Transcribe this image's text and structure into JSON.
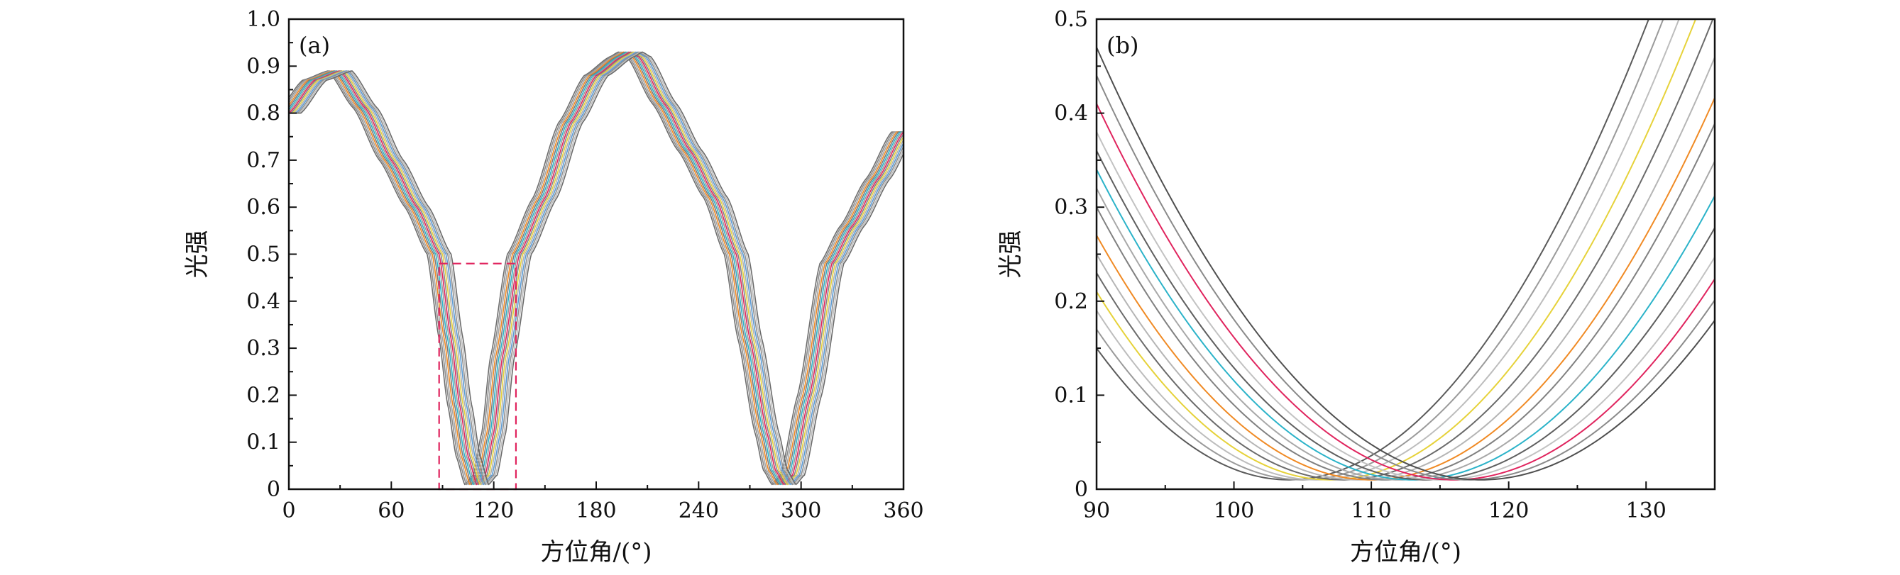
{
  "chart_data": [
    {
      "type": "line",
      "panel_label": "(a)",
      "xlabel": "方位角/(°)",
      "ylabel": "光强",
      "xlim": [
        0,
        360
      ],
      "ylim": [
        0,
        1.0
      ],
      "xticks": [
        "0",
        "60",
        "120",
        "180",
        "240",
        "300",
        "360"
      ],
      "yticks": [
        "0",
        "0.1",
        "0.2",
        "0.3",
        "0.4",
        "0.5",
        "0.6",
        "0.7",
        "0.8",
        "0.9",
        "1.0"
      ],
      "grid": false,
      "series_count": 15,
      "series_offset_step_deg": 1.0,
      "series_colors": [
        "#6e6e6e",
        "#8c8c8c",
        "#a5a5a5",
        "#f08a24",
        "#7a7a7a",
        "#2bb3c9",
        "#9a9a9a",
        "#e0245e",
        "#858585",
        "#e6d23a",
        "#b0b0b0",
        "#5b9bd5",
        "#909090",
        "#bdbdbd",
        "#6a6a6a"
      ],
      "keypoints": {
        "x": [
          0,
          15,
          30,
          45,
          60,
          75,
          88,
          95,
          100,
          105,
          110,
          115,
          120,
          125,
          135,
          150,
          165,
          180,
          195,
          200,
          205,
          220,
          235,
          250,
          262,
          270,
          280,
          285,
          290,
          295,
          305,
          318,
          330,
          345,
          360
        ],
        "y": [
          0.8,
          0.87,
          0.89,
          0.81,
          0.7,
          0.6,
          0.5,
          0.32,
          0.18,
          0.07,
          0.01,
          0.03,
          0.12,
          0.28,
          0.5,
          0.62,
          0.78,
          0.88,
          0.92,
          0.93,
          0.92,
          0.82,
          0.72,
          0.62,
          0.5,
          0.32,
          0.12,
          0.04,
          0.01,
          0.03,
          0.2,
          0.48,
          0.56,
          0.66,
          0.76
        ]
      },
      "zoom_box": {
        "x": [
          88,
          133
        ],
        "y": [
          0,
          0.48
        ]
      }
    },
    {
      "type": "line",
      "panel_label": "(b)",
      "xlabel": "方位角/(°)",
      "ylabel": "光强",
      "xlim": [
        90,
        135
      ],
      "ylim": [
        0,
        0.5
      ],
      "xticks": [
        "90",
        "100",
        "110",
        "120",
        "130"
      ],
      "yticks": [
        "0",
        "0.1",
        "0.2",
        "0.3",
        "0.4",
        "0.5"
      ],
      "grid": false,
      "series": [
        {
          "min_x": 104,
          "values_at_90": 0.15,
          "color": "#5a5a5a"
        },
        {
          "min_x": 105,
          "values_at_90": 0.17,
          "color": "#9a9a9a"
        },
        {
          "min_x": 106,
          "values_at_90": 0.19,
          "color": "#bdbdbd"
        },
        {
          "min_x": 107,
          "values_at_90": 0.21,
          "color": "#e6d23a"
        },
        {
          "min_x": 108,
          "values_at_90": 0.23,
          "color": "#6a6a6a"
        },
        {
          "min_x": 109,
          "values_at_90": 0.25,
          "color": "#b5b5b5"
        },
        {
          "min_x": 110,
          "values_at_90": 0.27,
          "color": "#f08a24"
        },
        {
          "min_x": 111,
          "values_at_90": 0.3,
          "color": "#808080"
        },
        {
          "min_x": 112,
          "values_at_90": 0.32,
          "color": "#a8a8a8"
        },
        {
          "min_x": 113,
          "values_at_90": 0.34,
          "color": "#2bb3c9"
        },
        {
          "min_x": 114,
          "values_at_90": 0.36,
          "color": "#5f5f5f"
        },
        {
          "min_x": 115,
          "values_at_90": 0.38,
          "color": "#c2c2c2"
        },
        {
          "min_x": 116,
          "values_at_90": 0.41,
          "color": "#e0245e"
        },
        {
          "min_x": 117,
          "values_at_90": 0.44,
          "color": "#8a8a8a"
        },
        {
          "min_x": 118,
          "values_at_90": 0.47,
          "color": "#4f4f4f"
        }
      ],
      "min_value": 0.01
    }
  ]
}
